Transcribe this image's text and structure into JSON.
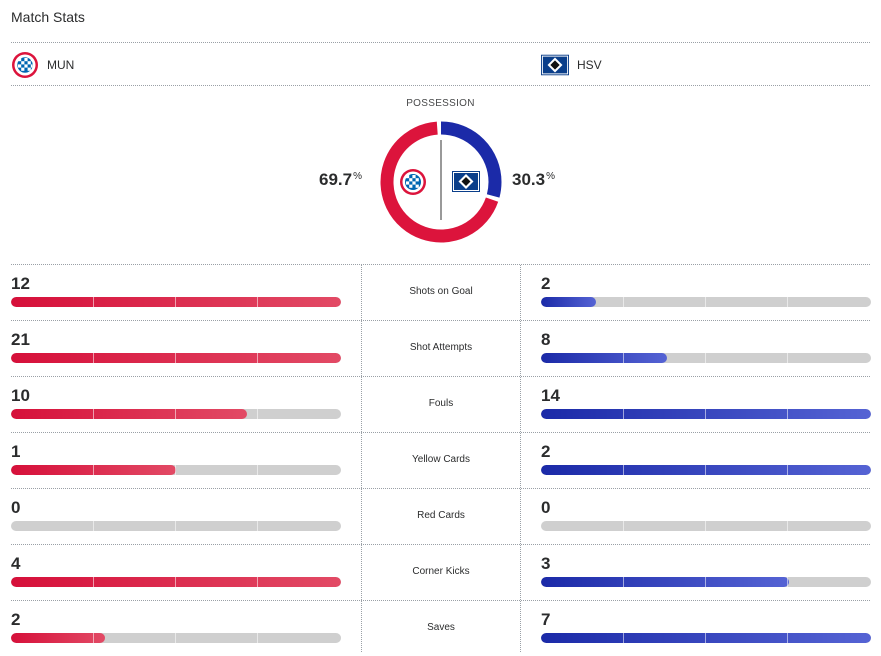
{
  "header": {
    "title": "Match Stats"
  },
  "teams": {
    "home": {
      "abbr": "MUN",
      "logo_icon": "fc-bayern-crest-icon",
      "color": "#dc143c"
    },
    "away": {
      "abbr": "HSV",
      "logo_icon": "hsv-diamond-crest-icon",
      "color": "#1b2aa8"
    }
  },
  "possession": {
    "label": "POSSESSION",
    "home_value": "69.7",
    "away_value": "30.3",
    "unit": "%",
    "home_fraction": 0.697,
    "away_fraction": 0.303
  },
  "stats": [
    {
      "label": "Shots on Goal",
      "home": "12",
      "away": "2",
      "home_fraction": 1.0,
      "away_fraction": 0.167
    },
    {
      "label": "Shot Attempts",
      "home": "21",
      "away": "8",
      "home_fraction": 1.0,
      "away_fraction": 0.381
    },
    {
      "label": "Fouls",
      "home": "10",
      "away": "14",
      "home_fraction": 0.714,
      "away_fraction": 1.0
    },
    {
      "label": "Yellow Cards",
      "home": "1",
      "away": "2",
      "home_fraction": 0.5,
      "away_fraction": 1.0
    },
    {
      "label": "Red Cards",
      "home": "0",
      "away": "0",
      "home_fraction": 0.0,
      "away_fraction": 0.0
    },
    {
      "label": "Corner Kicks",
      "home": "4",
      "away": "3",
      "home_fraction": 1.0,
      "away_fraction": 0.75
    },
    {
      "label": "Saves",
      "home": "2",
      "away": "7",
      "home_fraction": 0.286,
      "away_fraction": 1.0
    }
  ]
}
